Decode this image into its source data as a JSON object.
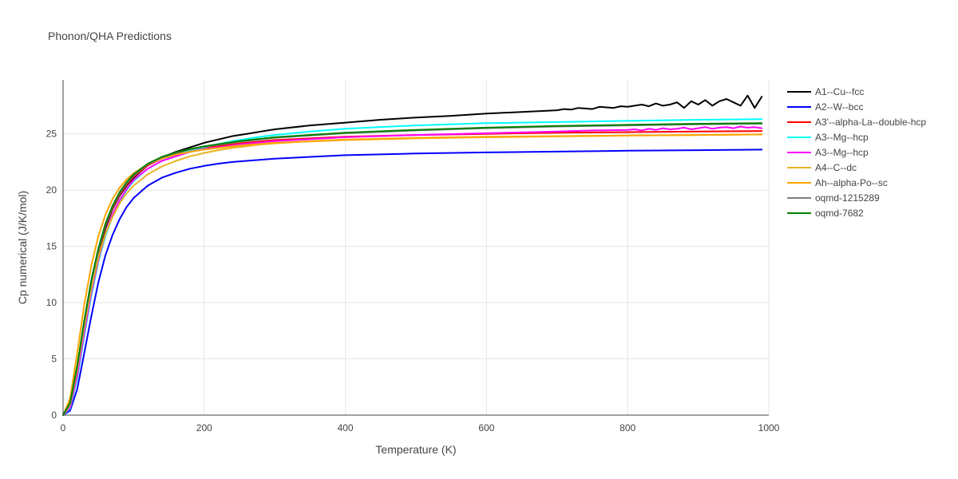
{
  "chart_data": {
    "type": "line",
    "title": "Phonon/QHA Predictions",
    "xlabel": "Temperature (K)",
    "ylabel": "Cp numerical (J/K/mol)",
    "xlim": [
      0,
      1000
    ],
    "ylim": [
      0,
      29.8
    ],
    "xticks": [
      0,
      200,
      400,
      600,
      800,
      1000
    ],
    "yticks": [
      0,
      5,
      10,
      15,
      20,
      25
    ],
    "grid": true,
    "legend_position": "right",
    "series": [
      {
        "name": "A1--Cu--fcc",
        "color": "#000000",
        "x": [
          0,
          10,
          20,
          30,
          40,
          50,
          60,
          70,
          80,
          90,
          100,
          120,
          140,
          160,
          180,
          200,
          220,
          240,
          260,
          280,
          300,
          350,
          400,
          450,
          500,
          550,
          600,
          650,
          700,
          710,
          720,
          730,
          740,
          750,
          760,
          770,
          780,
          790,
          800,
          810,
          820,
          830,
          840,
          850,
          860,
          870,
          880,
          890,
          900,
          910,
          920,
          930,
          940,
          950,
          960,
          970,
          980,
          990
        ],
        "y": [
          0,
          0.8,
          3.8,
          7.7,
          11.3,
          14.3,
          16.6,
          18.3,
          19.5,
          20.4,
          21.1,
          22.2,
          22.9,
          23.4,
          23.8,
          24.2,
          24.5,
          24.8,
          25.0,
          25.2,
          25.4,
          25.75,
          26.0,
          26.25,
          26.45,
          26.6,
          26.8,
          26.95,
          27.1,
          27.2,
          27.15,
          27.3,
          27.25,
          27.2,
          27.4,
          27.35,
          27.3,
          27.45,
          27.4,
          27.5,
          27.6,
          27.45,
          27.7,
          27.5,
          27.6,
          27.8,
          27.3,
          27.9,
          27.6,
          28.0,
          27.5,
          27.9,
          28.1,
          27.8,
          27.5,
          28.4,
          27.3,
          28.3
        ]
      },
      {
        "name": "A2--W--bcc",
        "color": "#0000ff",
        "x": [
          0,
          10,
          20,
          30,
          40,
          50,
          60,
          70,
          80,
          90,
          100,
          120,
          140,
          160,
          180,
          200,
          220,
          240,
          260,
          280,
          300,
          350,
          400,
          500,
          600,
          700,
          800,
          900,
          990
        ],
        "y": [
          0,
          0.4,
          2.3,
          5.5,
          8.8,
          11.8,
          14.2,
          16.0,
          17.4,
          18.5,
          19.3,
          20.4,
          21.1,
          21.55,
          21.9,
          22.15,
          22.35,
          22.5,
          22.6,
          22.7,
          22.8,
          22.95,
          23.1,
          23.25,
          23.35,
          23.42,
          23.5,
          23.55,
          23.6
        ]
      },
      {
        "name": "A3'--alpha-La--double-hcp",
        "color": "#ff0000",
        "x": [
          0,
          10,
          20,
          30,
          40,
          50,
          60,
          70,
          80,
          90,
          100,
          120,
          140,
          160,
          180,
          200,
          250,
          300,
          400,
          500,
          600,
          700,
          800,
          900,
          990
        ],
        "y": [
          0,
          0.9,
          4.0,
          8.0,
          11.6,
          14.5,
          16.8,
          18.4,
          19.6,
          20.5,
          21.2,
          22.2,
          22.8,
          23.2,
          23.5,
          23.75,
          24.15,
          24.45,
          24.75,
          24.9,
          25.0,
          25.1,
          25.15,
          25.2,
          25.25
        ]
      },
      {
        "name": "A3--Mg--hcp",
        "color": "#00ffff",
        "x": [
          0,
          10,
          20,
          30,
          40,
          50,
          60,
          70,
          80,
          90,
          100,
          120,
          140,
          160,
          180,
          200,
          220,
          240,
          260,
          280,
          300,
          350,
          400,
          500,
          600,
          700,
          800,
          900,
          990
        ],
        "y": [
          0,
          0.6,
          3.2,
          7.0,
          10.6,
          13.6,
          15.9,
          17.7,
          19.0,
          20.0,
          20.8,
          21.9,
          22.6,
          23.1,
          23.5,
          23.8,
          24.1,
          24.35,
          24.55,
          24.75,
          24.9,
          25.2,
          25.45,
          25.75,
          25.95,
          26.05,
          26.15,
          26.25,
          26.3
        ]
      },
      {
        "name": "A3--Mg--hcp",
        "color": "#ff00ff",
        "x": [
          0,
          10,
          20,
          30,
          40,
          50,
          60,
          70,
          80,
          90,
          100,
          120,
          140,
          160,
          180,
          200,
          250,
          300,
          400,
          500,
          600,
          700,
          750,
          800,
          810,
          820,
          830,
          840,
          850,
          860,
          870,
          880,
          890,
          900,
          910,
          920,
          930,
          940,
          950,
          960,
          970,
          980,
          990
        ],
        "y": [
          0,
          0.7,
          3.5,
          7.3,
          10.9,
          13.8,
          16.1,
          17.8,
          19.1,
          20.1,
          20.9,
          21.9,
          22.6,
          23.0,
          23.4,
          23.65,
          24.05,
          24.35,
          24.7,
          24.9,
          25.05,
          25.2,
          25.3,
          25.35,
          25.4,
          25.3,
          25.45,
          25.35,
          25.5,
          25.4,
          25.45,
          25.55,
          25.4,
          25.5,
          25.6,
          25.45,
          25.55,
          25.6,
          25.5,
          25.65,
          25.55,
          25.6,
          25.5
        ]
      },
      {
        "name": "A4--C--dc",
        "color": "#e6b422",
        "x": [
          0,
          10,
          20,
          30,
          40,
          50,
          60,
          70,
          80,
          90,
          100,
          120,
          140,
          160,
          180,
          200,
          220,
          240,
          260,
          280,
          300,
          350,
          400,
          500,
          600,
          700,
          800,
          900,
          990
        ],
        "y": [
          0,
          0.9,
          4.0,
          7.8,
          11.2,
          14.0,
          16.1,
          17.6,
          18.8,
          19.7,
          20.4,
          21.4,
          22.1,
          22.6,
          23.0,
          23.3,
          23.55,
          23.75,
          23.9,
          24.05,
          24.15,
          24.35,
          24.5,
          24.65,
          24.75,
          24.8,
          24.85,
          24.9,
          24.95
        ]
      },
      {
        "name": "Ah--alpha-Po--sc",
        "color": "#ffa500",
        "x": [
          0,
          10,
          20,
          30,
          40,
          50,
          60,
          70,
          80,
          90,
          100,
          120,
          140,
          160,
          180,
          200,
          250,
          300,
          400,
          500,
          600,
          700,
          800,
          900,
          990
        ],
        "y": [
          0,
          1.5,
          5.5,
          9.8,
          13.3,
          15.9,
          17.8,
          19.2,
          20.2,
          20.95,
          21.5,
          22.3,
          22.8,
          23.15,
          23.4,
          23.6,
          23.95,
          24.2,
          24.45,
          24.6,
          24.7,
          24.78,
          24.85,
          24.9,
          24.95
        ]
      },
      {
        "name": "oqmd-1215289",
        "color": "#808080",
        "x": [
          0,
          10,
          20,
          30,
          40,
          50,
          60,
          70,
          80,
          90,
          100,
          120,
          140,
          160,
          180,
          200,
          250,
          300,
          400,
          500,
          600,
          700,
          800,
          900,
          990
        ],
        "y": [
          0,
          1.0,
          4.2,
          8.2,
          11.8,
          14.6,
          16.9,
          18.5,
          19.7,
          20.6,
          21.3,
          22.3,
          22.9,
          23.3,
          23.6,
          23.85,
          24.3,
          24.65,
          25.05,
          25.3,
          25.5,
          25.65,
          25.75,
          25.85,
          25.9
        ]
      },
      {
        "name": "oqmd-7682",
        "color": "#008000",
        "x": [
          0,
          10,
          20,
          30,
          40,
          50,
          60,
          70,
          80,
          90,
          100,
          120,
          140,
          160,
          180,
          200,
          250,
          300,
          400,
          500,
          600,
          700,
          800,
          900,
          990
        ],
        "y": [
          0,
          1.1,
          4.4,
          8.4,
          12.0,
          14.8,
          17.0,
          18.6,
          19.8,
          20.7,
          21.4,
          22.35,
          22.95,
          23.35,
          23.65,
          23.9,
          24.35,
          24.7,
          25.1,
          25.35,
          25.55,
          25.7,
          25.8,
          25.9,
          25.95
        ]
      }
    ]
  }
}
